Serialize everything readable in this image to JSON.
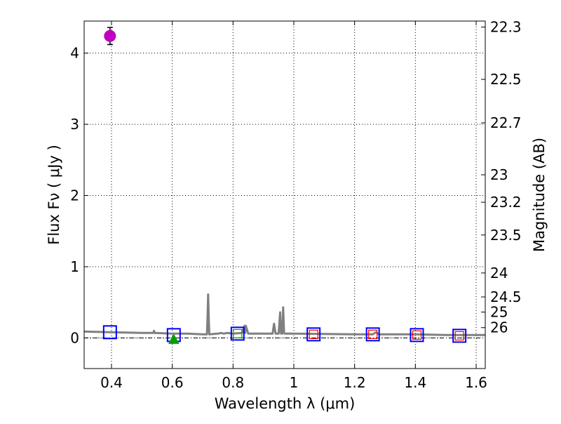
{
  "chart_data": {
    "type": "scatter",
    "xlabel": "Wavelength  λ (μm)",
    "ylabel": "Flux  Fν  ( μJy )",
    "y2label": "Magnitude (AB)",
    "xlim": [
      0.31,
      1.63
    ],
    "ylim": [
      -0.43,
      4.45
    ],
    "grid": true,
    "x_ticks": [
      0.4,
      0.6,
      0.8,
      1.0,
      1.2,
      1.4,
      1.6
    ],
    "x_tick_labels": [
      "0.4",
      "0.6",
      "0.8",
      "1",
      "1.2",
      "1.4",
      "1.6"
    ],
    "y_ticks": [
      0,
      1,
      2,
      3,
      4
    ],
    "y_tick_labels": [
      "0",
      "1",
      "2",
      "3",
      "4"
    ],
    "mag_ticks": [
      22.3,
      22.5,
      22.7,
      23,
      23.2,
      23.5,
      24,
      24.5,
      25,
      26
    ],
    "mag_tick_labels": [
      "22.3",
      "22.5",
      "22.7",
      "23",
      "23.2",
      "23.5",
      "24",
      "24.5",
      "25",
      "26"
    ],
    "zero_line": 0,
    "detection": {
      "x": 0.395,
      "y": 4.24,
      "yerr": 0.12,
      "color": "#bf00bf"
    },
    "upper_limit": {
      "x": 0.605,
      "y": -0.02,
      "color": "#00a000"
    },
    "model_boxes": [
      {
        "x": 0.395,
        "y": 0.08,
        "edge": "#0000ff"
      },
      {
        "x": 0.605,
        "y": 0.04,
        "edge": "#0000ff"
      },
      {
        "x": 0.815,
        "y": 0.06,
        "edge": "#0000ff",
        "inner": "#00a000"
      },
      {
        "x": 1.065,
        "y": 0.05,
        "edge": "#0000ff",
        "inner": "#ff0000"
      },
      {
        "x": 1.26,
        "y": 0.05,
        "edge": "#0000ff",
        "inner": "#ff0000"
      },
      {
        "x": 1.405,
        "y": 0.04,
        "edge": "#0000ff",
        "inner": "#ff0000"
      },
      {
        "x": 1.545,
        "y": 0.03,
        "edge": "#0000ff",
        "inner": "#ff0000"
      }
    ],
    "model_spectrum": {
      "color": "#808080",
      "x": [
        0.31,
        0.4,
        0.5,
        0.538,
        0.54,
        0.542,
        0.6,
        0.65,
        0.7,
        0.714,
        0.716,
        0.718,
        0.72,
        0.722,
        0.75,
        0.76,
        0.77,
        0.78,
        0.8,
        0.83,
        0.838,
        0.84,
        0.842,
        0.85,
        0.9,
        0.93,
        0.935,
        0.94,
        0.945,
        0.95,
        0.955,
        0.958,
        0.96,
        0.962,
        0.965,
        0.968,
        0.97,
        0.973,
        0.98,
        1.0,
        1.2,
        1.26,
        1.27,
        1.28,
        1.4,
        1.5,
        1.63
      ],
      "y": [
        0.09,
        0.08,
        0.07,
        0.07,
        0.1,
        0.07,
        0.06,
        0.06,
        0.05,
        0.05,
        0.28,
        0.61,
        0.28,
        0.05,
        0.06,
        0.07,
        0.06,
        0.07,
        0.06,
        0.07,
        0.17,
        0.07,
        0.17,
        0.06,
        0.06,
        0.06,
        0.2,
        0.06,
        0.06,
        0.06,
        0.36,
        0.06,
        0.1,
        0.06,
        0.43,
        0.07,
        0.06,
        0.06,
        0.06,
        0.06,
        0.05,
        0.05,
        0.08,
        0.05,
        0.05,
        0.04,
        0.04
      ]
    }
  }
}
